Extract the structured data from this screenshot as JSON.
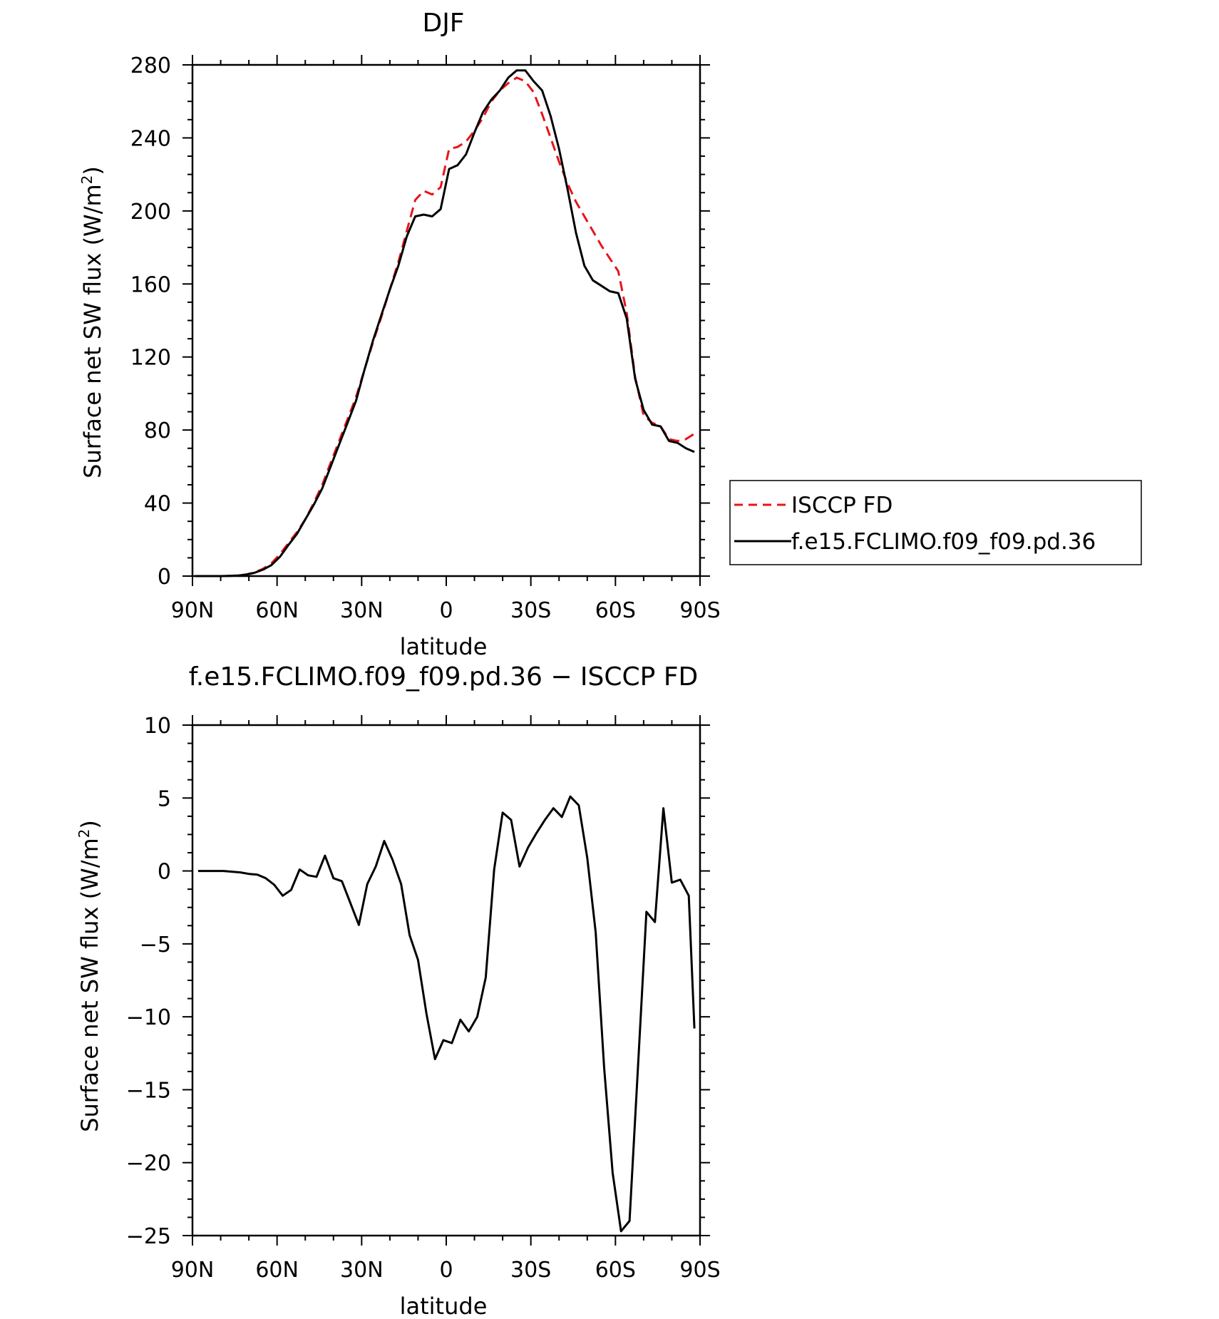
{
  "chart_data": [
    {
      "type": "line",
      "title": "DJF",
      "xlabel": "latitude",
      "ylabel": "Surface net SW flux (W/m²)",
      "ylabel_main": "Surface net SW flux (W/m",
      "ylabel_sup": "2",
      "ylabel_end": ")",
      "xlim": [
        -90,
        90
      ],
      "ylim": [
        0,
        280
      ],
      "xticks": [
        -90,
        -60,
        -30,
        0,
        30,
        60,
        90
      ],
      "xtick_labels": [
        "90N",
        "60N",
        "30N",
        "0",
        "30S",
        "60S",
        "90S"
      ],
      "yticks": [
        0,
        40,
        80,
        120,
        160,
        200,
        240,
        280
      ],
      "ytick_labels": [
        "0",
        "40",
        "80",
        "120",
        "160",
        "200",
        "240",
        "280"
      ],
      "grid": false,
      "legend_position": "right",
      "series": [
        {
          "name": "ISCCP FD",
          "color": "#e8141a",
          "dash": "dashed",
          "x": [
            -89,
            -86,
            -83,
            -80,
            -77,
            -74,
            -71,
            -68,
            -65,
            -62,
            -59,
            -56,
            -53,
            -50,
            -47,
            -44,
            -41,
            -38,
            -35,
            -32,
            -29,
            -26,
            -23,
            -20,
            -17,
            -14,
            -11,
            -8,
            -5,
            -2,
            1,
            4,
            7,
            10,
            13,
            16,
            19,
            22,
            25,
            28,
            31,
            34,
            37,
            40,
            43,
            46,
            49,
            52,
            55,
            58,
            61,
            64,
            67,
            70,
            73,
            76,
            79,
            82,
            85,
            88
          ],
          "values": [
            0,
            0,
            0,
            0,
            0.1,
            0.3,
            0.9,
            2,
            4,
            7,
            12,
            18,
            24,
            31,
            40,
            50,
            62,
            74,
            86,
            98,
            113,
            128,
            142,
            157,
            172,
            189,
            206,
            211,
            209,
            213,
            234,
            235,
            238,
            244,
            251,
            260,
            266,
            270,
            273,
            271,
            265,
            253,
            240,
            227,
            215,
            205,
            197,
            189,
            181,
            174,
            167,
            144,
            109,
            88,
            84,
            82,
            75,
            74,
            75,
            78
          ]
        },
        {
          "name": "f.e15.FCLIMO.f09_f09.pd.36",
          "color": "#000000",
          "dash": "solid",
          "x": [
            -89,
            -86,
            -83,
            -80,
            -77,
            -74,
            -71,
            -68,
            -65,
            -62,
            -59,
            -56,
            -53,
            -50,
            -47,
            -44,
            -41,
            -38,
            -35,
            -32,
            -29,
            -26,
            -23,
            -20,
            -17,
            -14,
            -11,
            -8,
            -5,
            -2,
            1,
            4,
            7,
            10,
            13,
            16,
            19,
            22,
            25,
            28,
            31,
            34,
            37,
            40,
            43,
            46,
            49,
            52,
            55,
            58,
            61,
            64,
            67,
            70,
            73,
            76,
            79,
            82,
            85,
            88
          ],
          "values": [
            0,
            0,
            0,
            0,
            0.1,
            0.3,
            0.8,
            1.8,
            3.5,
            6,
            10.5,
            17,
            23,
            31,
            39,
            48,
            60,
            72,
            84,
            96,
            113,
            129,
            143,
            157,
            170,
            186,
            197,
            198,
            197,
            201,
            223,
            225,
            231,
            243,
            254,
            261,
            266,
            273,
            277,
            277,
            271,
            266,
            252,
            234,
            212,
            188,
            170,
            162,
            159,
            156,
            155,
            141,
            108,
            91,
            83,
            82,
            74,
            73,
            70,
            68
          ]
        }
      ]
    },
    {
      "type": "line",
      "title": "f.e15.FCLIMO.f09_f09.pd.36 − ISCCP FD",
      "xlabel": "latitude",
      "ylabel": "Surface net SW flux (W/m²)",
      "ylabel_main": "Surface net SW flux (W/m",
      "ylabel_sup": "2",
      "ylabel_end": ")",
      "xlim": [
        -90,
        90
      ],
      "ylim": [
        -25,
        10
      ],
      "xticks": [
        -90,
        -60,
        -30,
        0,
        30,
        60,
        90
      ],
      "xtick_labels": [
        "90N",
        "60N",
        "30N",
        "0",
        "30S",
        "60S",
        "90S"
      ],
      "yticks": [
        -25,
        -20,
        -15,
        -10,
        -5,
        0,
        5,
        10
      ],
      "ytick_labels": [
        "−25",
        "−20",
        "−15",
        "−10",
        "−5",
        "0",
        "5",
        "10"
      ],
      "grid": false,
      "series": [
        {
          "color": "#000000",
          "dash": "solid",
          "x": [
            -88,
            -85,
            -82,
            -79,
            -76,
            -73,
            -70,
            -67,
            -64,
            -61,
            -58,
            -55,
            -52,
            -49,
            -46,
            -43,
            -40,
            -37,
            -34,
            -31,
            -28,
            -25,
            -22,
            -19,
            -16,
            -13,
            -10,
            -7,
            -4,
            -1,
            2,
            5,
            8,
            11,
            14,
            17,
            20,
            23,
            26,
            29,
            32,
            35,
            38,
            41,
            44,
            47,
            50,
            53,
            56,
            59,
            62,
            65,
            68,
            71,
            74,
            77,
            80,
            83,
            86,
            88
          ],
          "values": [
            0,
            0,
            0,
            0,
            -0.05,
            -0.1,
            -0.2,
            -0.25,
            -0.5,
            -0.95,
            -1.7,
            -1.3,
            0.1,
            -0.3,
            -0.4,
            1.05,
            -0.5,
            -0.7,
            -2.2,
            -3.7,
            -0.9,
            0.3,
            2.05,
            0.75,
            -0.9,
            -4.4,
            -6.1,
            -9.8,
            -12.9,
            -11.6,
            -11.8,
            -10.2,
            -11,
            -10,
            -7.3,
            0.1,
            4,
            3.5,
            0.3,
            1.6,
            2.6,
            3.5,
            4.3,
            3.7,
            5.1,
            4.5,
            0.9,
            -4.2,
            -13.5,
            -20.7,
            -24.7,
            -24,
            -13.4,
            -2.8,
            -3.5,
            4.3,
            -0.8,
            -0.6,
            -1.7,
            -10.8
          ]
        }
      ]
    }
  ]
}
